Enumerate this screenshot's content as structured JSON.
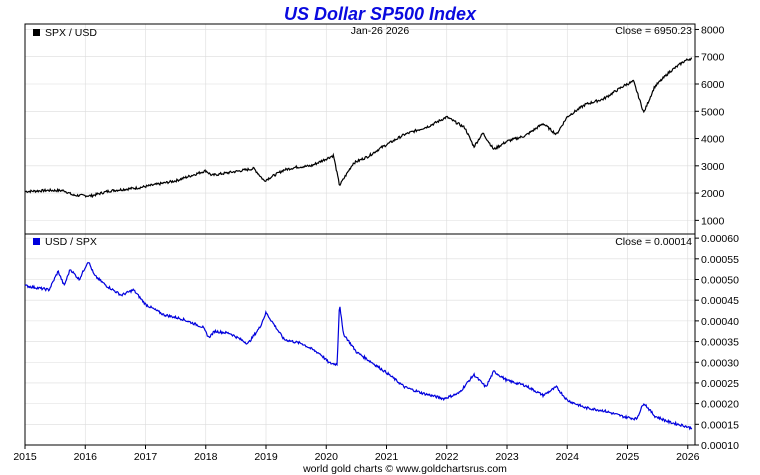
{
  "title": "US Dollar SP500 Index",
  "date": "Jan-26  2026",
  "footer": "world gold charts © www.goldchartsrus.com",
  "colors": {
    "top_line": "#000000",
    "bottom_line": "#0000dd",
    "title": "#0a0adf",
    "grid": "#dcdcdc"
  },
  "x_ticks": [
    "2015",
    "2016",
    "2017",
    "2018",
    "2019",
    "2020",
    "2021",
    "2022",
    "2023",
    "2024",
    "2025",
    "2026"
  ],
  "chart_data": [
    {
      "type": "line",
      "panel": "top",
      "legend": "SPX / USD",
      "close_label": "Close = 6950.23",
      "xlim": [
        2015.0,
        2026.12
      ],
      "ylim": [
        500,
        8200
      ],
      "yticks": [
        1000,
        2000,
        3000,
        4000,
        5000,
        6000,
        7000,
        8000
      ],
      "x": [
        2015.0,
        2015.4,
        2015.65,
        2015.8,
        2016.1,
        2016.4,
        2016.9,
        2017.5,
        2018.0,
        2018.1,
        2018.8,
        2018.97,
        2019.3,
        2019.5,
        2019.75,
        2020.12,
        2020.22,
        2020.45,
        2020.7,
        2020.9,
        2021.3,
        2021.7,
        2022.0,
        2022.3,
        2022.45,
        2022.6,
        2022.78,
        2023.0,
        2023.3,
        2023.6,
        2023.82,
        2024.0,
        2024.3,
        2024.6,
        2024.95,
        2025.1,
        2025.27,
        2025.45,
        2025.7,
        2025.95,
        2026.07
      ],
      "values": [
        2058,
        2100,
        2090,
        1920,
        1900,
        2080,
        2200,
        2450,
        2820,
        2650,
        2900,
        2450,
        2850,
        2950,
        3000,
        3380,
        2280,
        3100,
        3350,
        3650,
        4150,
        4450,
        4790,
        4400,
        3700,
        4200,
        3600,
        3900,
        4100,
        4550,
        4150,
        4800,
        5250,
        5450,
        5950,
        6100,
        4950,
        5900,
        6450,
        6850,
        6950
      ]
    },
    {
      "type": "line",
      "panel": "bottom",
      "legend": "USD / SPX",
      "close_label": "Close = 0.00014",
      "xlim": [
        2015.0,
        2026.12
      ],
      "ylim": [
        0.0001,
        0.00061
      ],
      "yticks": [
        "0.00010",
        "0.00015",
        "0.00020",
        "0.00025",
        "0.00030",
        "0.00035",
        "0.00040",
        "0.00045",
        "0.00050",
        "0.00055",
        "0.00060"
      ],
      "x": [
        2015.0,
        2015.4,
        2015.55,
        2015.65,
        2015.75,
        2015.9,
        2016.05,
        2016.15,
        2016.35,
        2016.6,
        2016.8,
        2017.0,
        2017.3,
        2017.6,
        2017.95,
        2018.05,
        2018.15,
        2018.4,
        2018.7,
        2018.9,
        2019.0,
        2019.3,
        2019.6,
        2019.9,
        2020.05,
        2020.18,
        2020.22,
        2020.28,
        2020.5,
        2020.75,
        2021.0,
        2021.3,
        2021.6,
        2021.95,
        2022.2,
        2022.45,
        2022.65,
        2022.78,
        2023.0,
        2023.3,
        2023.6,
        2023.82,
        2024.0,
        2024.3,
        2024.6,
        2024.95,
        2025.15,
        2025.27,
        2025.45,
        2025.7,
        2025.95,
        2026.07
      ],
      "values": [
        0.000485,
        0.000475,
        0.00052,
        0.000485,
        0.000525,
        0.0005,
        0.000545,
        0.00051,
        0.000485,
        0.000462,
        0.000475,
        0.00044,
        0.000415,
        0.000405,
        0.000385,
        0.00036,
        0.000375,
        0.00037,
        0.000345,
        0.000385,
        0.00042,
        0.000355,
        0.000345,
        0.00032,
        0.000298,
        0.000295,
        0.000445,
        0.00037,
        0.000325,
        0.0003,
        0.000275,
        0.00024,
        0.000225,
        0.000212,
        0.000225,
        0.00027,
        0.00024,
        0.000278,
        0.000256,
        0.000244,
        0.00022,
        0.00024,
        0.000208,
        0.00019,
        0.000183,
        0.000168,
        0.000163,
        0.000202,
        0.00017,
        0.000155,
        0.000146,
        0.00014
      ]
    }
  ]
}
